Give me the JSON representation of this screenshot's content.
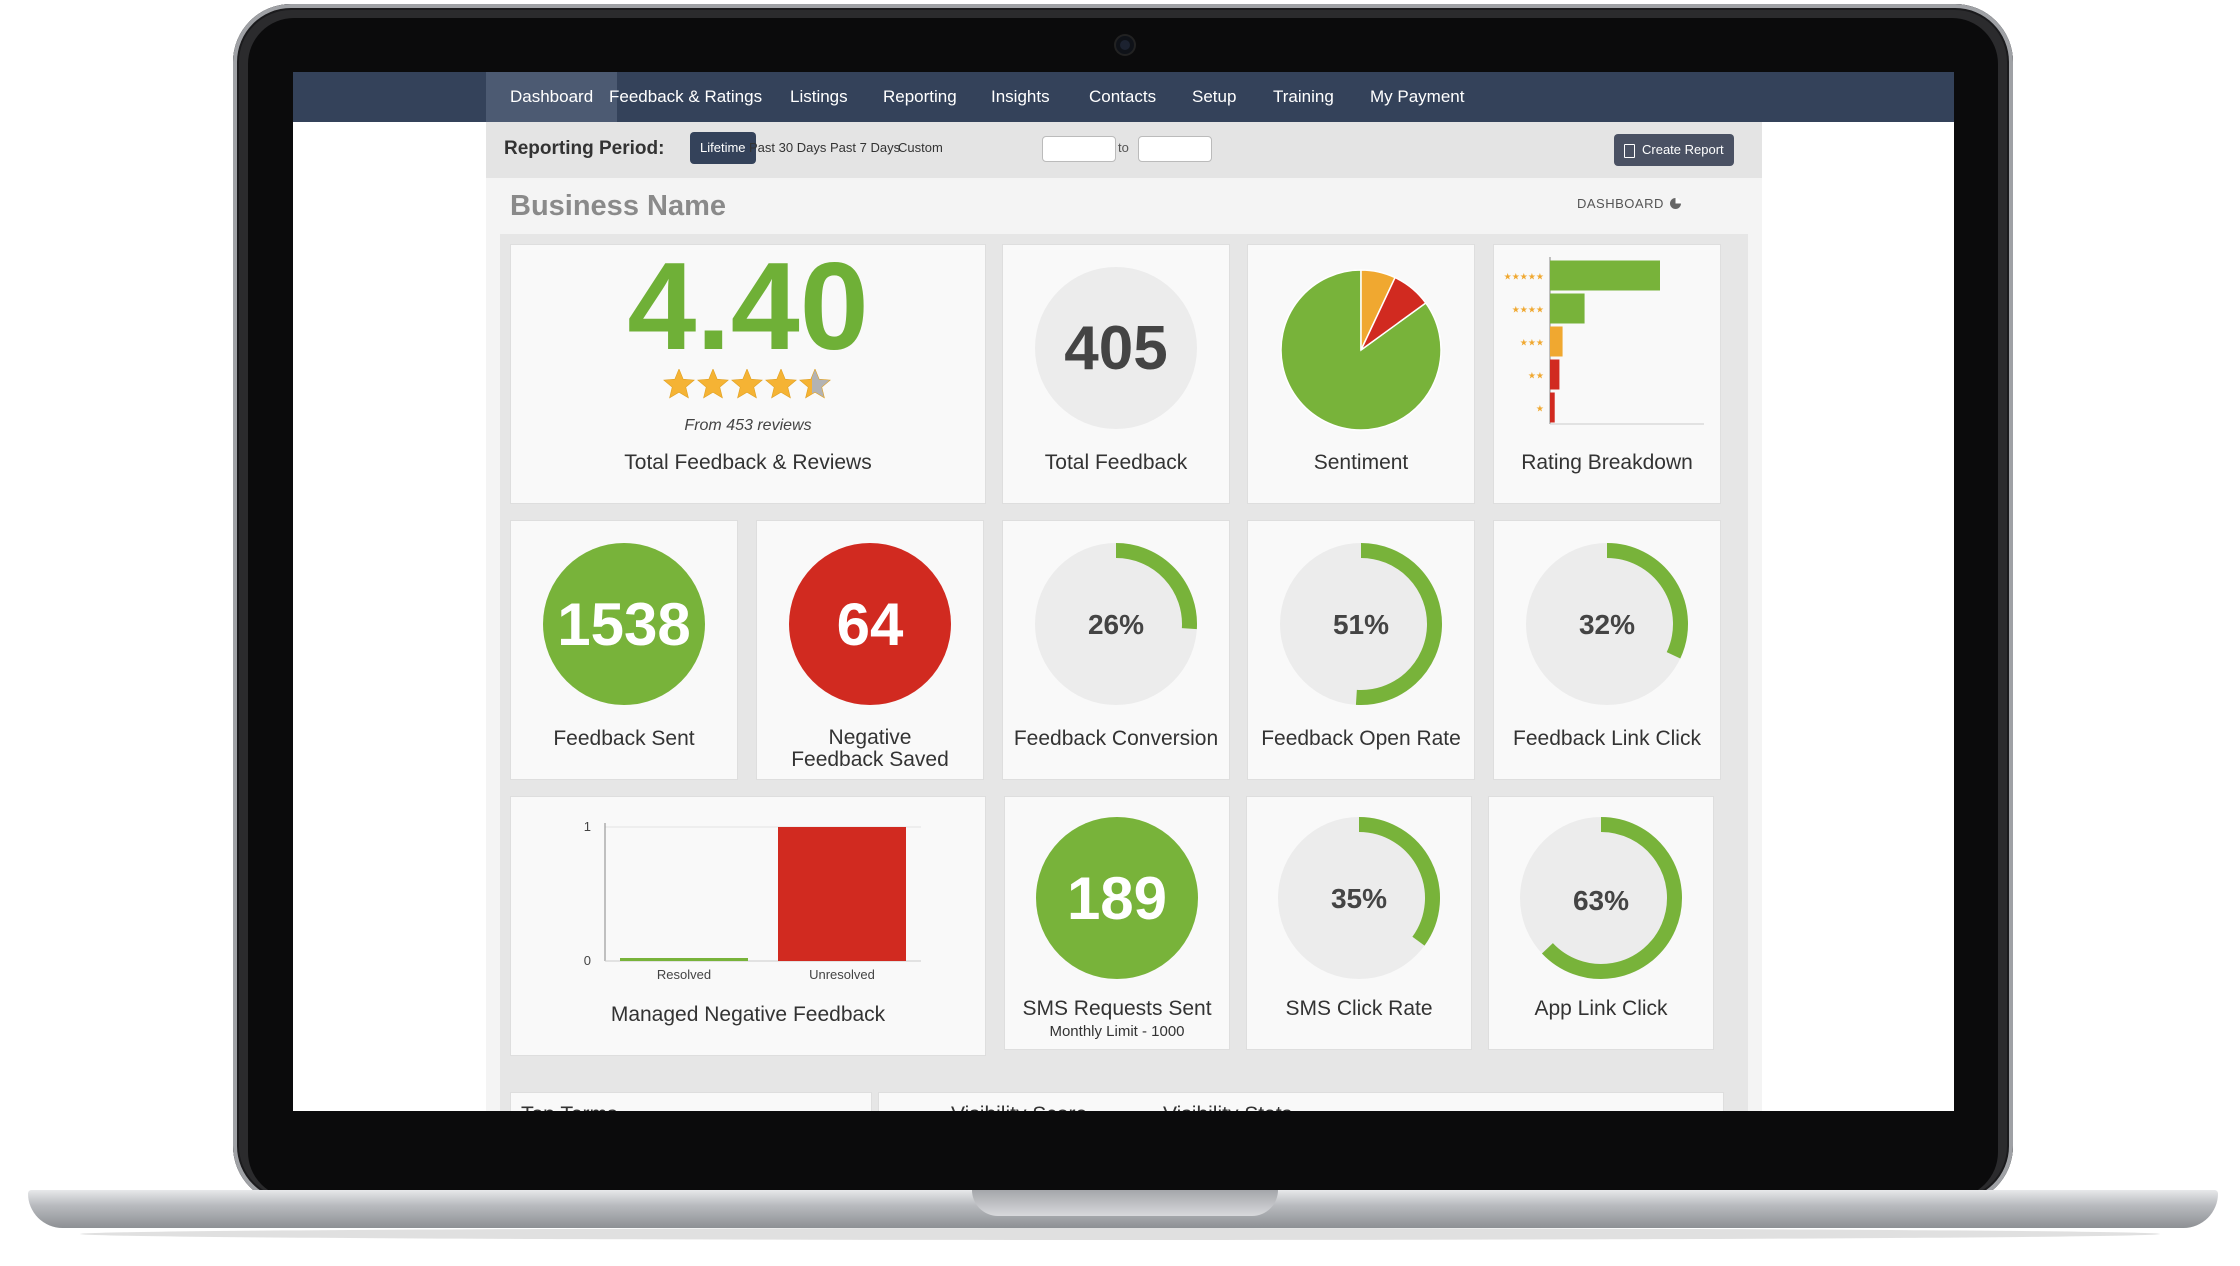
{
  "nav": {
    "items": [
      "Dashboard",
      "Feedback & Ratings",
      "Listings",
      "Reporting",
      "Insights",
      "Contacts",
      "Setup",
      "Training",
      "My Payment"
    ],
    "active": "Dashboard"
  },
  "reporting": {
    "label": "Reporting Period:",
    "options": [
      "Lifetime",
      "Past 30 Days",
      "Past 7 Days",
      "Custom"
    ],
    "active": "Lifetime",
    "to_label": "to",
    "from_value": "",
    "to_value": "",
    "create_report": "Create Report"
  },
  "business_name": "Business Name",
  "dashboard_link": "DASHBOARD",
  "rating": {
    "value": "4.40",
    "stars": 4.4,
    "from_reviews": "From 453 reviews",
    "label": "Total Feedback & Reviews"
  },
  "total_feedback": {
    "value": "405",
    "label": "Total Feedback"
  },
  "sentiment": {
    "label": "Sentiment",
    "chart_data": {
      "type": "pie",
      "slices": [
        {
          "name": "positive",
          "value": 85,
          "color": "#78b33a"
        },
        {
          "name": "neutral",
          "value": 7,
          "color": "#f0a830"
        },
        {
          "name": "negative",
          "value": 8,
          "color": "#d12a20"
        }
      ]
    }
  },
  "rating_breakdown": {
    "label": "Rating Breakdown",
    "chart_data": {
      "type": "bar",
      "orientation": "horizontal",
      "categories": [
        "★★★★★",
        "★★★★",
        "★★★",
        "★★",
        "★"
      ],
      "values": [
        70,
        22,
        8,
        6,
        3
      ],
      "colors": [
        "#78b33a",
        "#78b33a",
        "#f0a830",
        "#d12a20",
        "#d12a20"
      ]
    }
  },
  "metrics": [
    {
      "id": "feedback-sent",
      "value": "1538",
      "label": "Feedback Sent",
      "color": "#78b33a"
    },
    {
      "id": "negative-feedback-saved",
      "value": "64",
      "label": "Negative Feedback Saved",
      "color": "#d12a20"
    }
  ],
  "gauges": [
    {
      "id": "feedback-conversion",
      "text": "26%",
      "percent": 26,
      "label": "Feedback Conversion"
    },
    {
      "id": "feedback-open-rate",
      "text": "51%",
      "percent": 51,
      "label": "Feedback Open Rate"
    },
    {
      "id": "feedback-link-click",
      "text": "32%",
      "percent": 32,
      "label": "Feedback Link Click"
    },
    {
      "id": "sms-click-rate",
      "text": "35%",
      "percent": 35,
      "label": "SMS Click Rate"
    },
    {
      "id": "app-link-click",
      "text": "63%",
      "percent": 63,
      "label": "App Link Click"
    }
  ],
  "managed_negative": {
    "label": "Managed Negative Feedback",
    "chart_data": {
      "type": "bar",
      "categories": [
        "Resolved",
        "Unresolved"
      ],
      "values": [
        0,
        1
      ],
      "colors": [
        "#78b33a",
        "#d12a20"
      ],
      "ylim": [
        0,
        1
      ],
      "yticks": [
        "0",
        "1"
      ]
    }
  },
  "sms": {
    "value": "189",
    "label": "SMS Requests Sent",
    "sublabel": "Monthly Limit - 1000",
    "color": "#78b33a"
  },
  "bottom_tabs": {
    "top_terms": "Top Terms",
    "visibility_score": "Visibility Score",
    "visibility_stats": "Visibility Stats"
  }
}
